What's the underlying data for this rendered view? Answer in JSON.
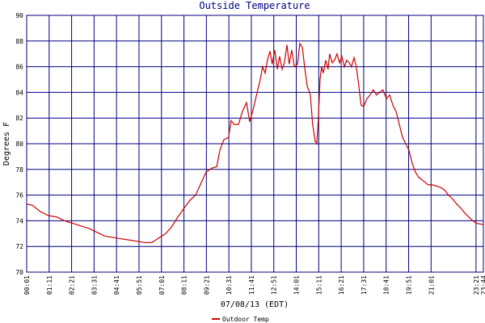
{
  "chart_data": {
    "type": "line",
    "title": "Outside Temperature",
    "x_label": "07/08/13 (EDT)",
    "y_label": "Degrees F",
    "xlim": [
      1,
      1424
    ],
    "ylim": [
      70,
      90
    ],
    "yticks": [
      70,
      72,
      74,
      76,
      78,
      80,
      82,
      84,
      86,
      88,
      90
    ],
    "xticks": [
      {
        "value": 1,
        "label": "00:01"
      },
      {
        "value": 71,
        "label": "01:11"
      },
      {
        "value": 141,
        "label": "02:21"
      },
      {
        "value": 211,
        "label": "03:31"
      },
      {
        "value": 281,
        "label": "04:41"
      },
      {
        "value": 351,
        "label": "05:51"
      },
      {
        "value": 421,
        "label": "07:01"
      },
      {
        "value": 491,
        "label": "08:11"
      },
      {
        "value": 561,
        "label": "09:21"
      },
      {
        "value": 631,
        "label": "10:31"
      },
      {
        "value": 701,
        "label": "11:41"
      },
      {
        "value": 771,
        "label": "12:51"
      },
      {
        "value": 841,
        "label": "14:01"
      },
      {
        "value": 911,
        "label": "15:11"
      },
      {
        "value": 981,
        "label": "16:21"
      },
      {
        "value": 1051,
        "label": "17:31"
      },
      {
        "value": 1121,
        "label": "18:41"
      },
      {
        "value": 1191,
        "label": "19:51"
      },
      {
        "value": 1261,
        "label": "21:01"
      },
      {
        "value": 1401,
        "label": "23:21"
      },
      {
        "value": 1424,
        "label": "23:44"
      }
    ],
    "grid": true,
    "x": [
      1,
      19,
      44,
      69,
      94,
      119,
      145,
      170,
      195,
      220,
      245,
      270,
      295,
      321,
      346,
      371,
      391,
      409,
      434,
      452,
      472,
      492,
      510,
      527,
      542,
      560,
      578,
      593,
      603,
      615,
      630,
      638,
      648,
      661,
      673,
      686,
      696,
      706,
      719,
      729,
      736,
      744,
      751,
      759,
      766,
      774,
      782,
      789,
      797,
      804,
      812,
      819,
      827,
      835,
      845,
      852,
      860,
      867,
      875,
      885,
      892,
      900,
      905,
      910,
      915,
      920,
      925,
      933,
      940,
      945,
      953,
      960,
      968,
      976,
      983,
      991,
      998,
      1006,
      1013,
      1021,
      1028,
      1036,
      1043,
      1051,
      1061,
      1071,
      1081,
      1091,
      1101,
      1111,
      1122,
      1132,
      1142,
      1152,
      1162,
      1172,
      1182,
      1192,
      1202,
      1212,
      1222,
      1232,
      1242,
      1252,
      1265,
      1278,
      1290,
      1303,
      1315,
      1328,
      1341,
      1353,
      1366,
      1378,
      1391,
      1403,
      1424
    ],
    "series": [
      {
        "name": "Outdoor Temp",
        "color": "#cc0000",
        "values": [
          75.3,
          75.2,
          74.7,
          74.4,
          74.3,
          74.0,
          73.8,
          73.6,
          73.4,
          73.1,
          72.8,
          72.7,
          72.6,
          72.5,
          72.4,
          72.3,
          72.3,
          72.6,
          73.0,
          73.5,
          74.3,
          75.0,
          75.6,
          76.0,
          76.8,
          77.8,
          78.1,
          78.2,
          79.5,
          80.3,
          80.5,
          81.8,
          81.5,
          81.5,
          82.5,
          83.2,
          81.7,
          82.6,
          84.0,
          85.0,
          86.0,
          85.5,
          86.5,
          87.2,
          86.2,
          87.3,
          85.8,
          86.8,
          85.8,
          86.3,
          87.7,
          86.2,
          87.3,
          86.0,
          86.2,
          87.8,
          87.5,
          86.0,
          84.5,
          83.8,
          81.5,
          80.2,
          80.0,
          82.0,
          85.0,
          86.0,
          85.5,
          86.5,
          85.8,
          87.0,
          86.3,
          86.5,
          87.0,
          86.3,
          86.8,
          86.0,
          86.5,
          86.3,
          86.0,
          86.7,
          86.0,
          84.5,
          83.0,
          82.9,
          83.5,
          83.8,
          84.2,
          83.8,
          84.0,
          84.2,
          83.5,
          83.8,
          83.0,
          82.5,
          81.5,
          80.5,
          80.0,
          79.5,
          78.5,
          77.8,
          77.4,
          77.2,
          77.0,
          76.8,
          76.8,
          76.7,
          76.6,
          76.4,
          76.0,
          75.7,
          75.3,
          75.0,
          74.6,
          74.3,
          74.0,
          73.8,
          73.7
        ]
      }
    ]
  }
}
